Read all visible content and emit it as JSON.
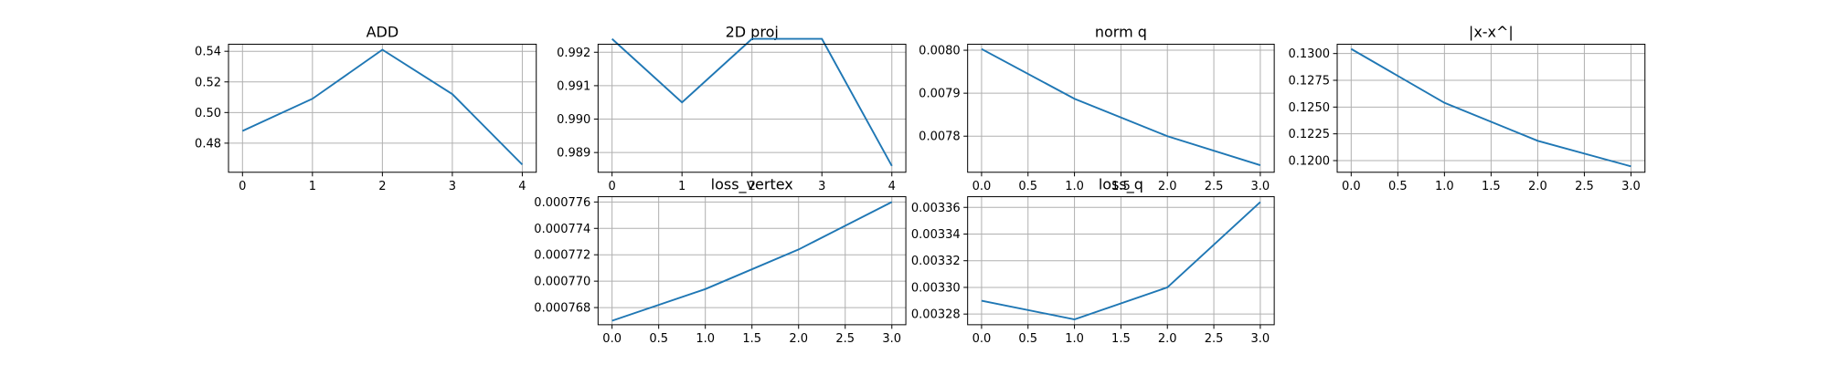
{
  "chart_data": [
    {
      "type": "line",
      "title": "ADD",
      "x": [
        0,
        1,
        2,
        3,
        4
      ],
      "series": [
        {
          "color": "#1f77b4",
          "values": [
            0.488,
            0.509,
            0.541,
            0.512,
            0.466
          ]
        }
      ],
      "xlim": [
        -0.2,
        4.2
      ],
      "xticks": [
        0,
        1,
        2,
        3,
        4
      ],
      "ylim": [
        0.461,
        0.5446
      ],
      "yticks": [
        0.48,
        {
          "value": 0.5,
          "label": "0.50"
        },
        0.52,
        0.54
      ],
      "grid": true
    },
    {
      "type": "line",
      "title": "2D proj",
      "x": [
        0,
        1,
        2,
        3,
        4
      ],
      "series": [
        {
          "color": "#1f77b4",
          "values": [
            0.9924,
            0.9905,
            0.9924,
            0.9924,
            0.9886
          ]
        }
      ],
      "xlim": [
        -0.2,
        4.2
      ],
      "xticks": [
        0,
        1,
        2,
        3,
        4
      ],
      "ylim": [
        0.98841,
        0.99224
      ],
      "yticks": [
        0.989,
        {
          "value": 0.99,
          "label": "0.990"
        },
        0.991,
        0.992
      ],
      "grid": true
    },
    {
      "type": "line",
      "title": "norm q",
      "x": [
        0,
        1,
        2,
        3
      ],
      "series": [
        {
          "color": "#1f77b4",
          "values": [
            0.008003,
            0.007887,
            0.0078,
            0.0077324
          ]
        }
      ],
      "xlim": [
        -0.15,
        3.15
      ],
      "xticks": [
        {
          "value": 0,
          "label": "0.0"
        },
        0.5,
        {
          "value": 1,
          "label": "1.0"
        },
        1.5,
        {
          "value": 2,
          "label": "2.0"
        },
        2.5,
        {
          "value": 3,
          "label": "3.0"
        }
      ],
      "ylim": [
        0.007716,
        0.008014
      ],
      "yticks": [
        0.0078,
        0.0079,
        {
          "value": 0.008,
          "label": "0.0080"
        }
      ],
      "grid": true
    },
    {
      "type": "line",
      "title": "|x-x^|",
      "x": [
        0,
        1,
        2,
        3
      ],
      "series": [
        {
          "color": "#1f77b4",
          "values": [
            0.13043,
            0.1254,
            0.12185,
            0.11946
          ]
        }
      ],
      "xlim": [
        -0.15,
        3.15
      ],
      "xticks": [
        {
          "value": 0,
          "label": "0.0"
        },
        0.5,
        {
          "value": 1,
          "label": "1.0"
        },
        1.5,
        {
          "value": 2,
          "label": "2.0"
        },
        2.5,
        {
          "value": 3,
          "label": "3.0"
        }
      ],
      "ylim": [
        0.11891,
        0.13087
      ],
      "yticks": [
        {
          "value": 0.12,
          "label": "0.1200"
        },
        0.1225,
        {
          "value": 0.125,
          "label": "0.1250"
        },
        0.1275,
        {
          "value": 0.13,
          "label": "0.1300"
        }
      ],
      "grid": true
    },
    {
      "type": "line",
      "title": "loss_vertex",
      "x": [
        0,
        1,
        2,
        3
      ],
      "series": [
        {
          "color": "#1f77b4",
          "values": [
            0.000767,
            0.0007694,
            0.0007724,
            0.000776
          ]
        }
      ],
      "xlim": [
        -0.15,
        3.15
      ],
      "xticks": [
        {
          "value": 0,
          "label": "0.0"
        },
        0.5,
        {
          "value": 1,
          "label": "1.0"
        },
        1.5,
        {
          "value": 2,
          "label": "2.0"
        },
        2.5,
        {
          "value": 3,
          "label": "3.0"
        }
      ],
      "ylim": [
        0.0007667,
        0.0007764
      ],
      "yticks": [
        0.000768,
        {
          "value": 0.00077,
          "label": "0.000770"
        },
        0.000772,
        0.000774,
        0.000776
      ],
      "grid": true
    },
    {
      "type": "line",
      "title": "loss_q",
      "x": [
        0,
        1,
        2,
        3
      ],
      "series": [
        {
          "color": "#1f77b4",
          "values": [
            0.00329,
            0.003276,
            0.0033,
            0.003364
          ]
        }
      ],
      "xlim": [
        -0.15,
        3.15
      ],
      "xticks": [
        {
          "value": 0,
          "label": "0.0"
        },
        0.5,
        {
          "value": 1,
          "label": "1.0"
        },
        1.5,
        {
          "value": 2,
          "label": "2.0"
        },
        2.5,
        {
          "value": 3,
          "label": "3.0"
        }
      ],
      "ylim": [
        0.003272,
        0.003368
      ],
      "yticks": [
        0.00328,
        {
          "value": 0.0033,
          "label": "0.00330"
        },
        0.00332,
        0.00334,
        0.00336
      ],
      "grid": true
    }
  ]
}
